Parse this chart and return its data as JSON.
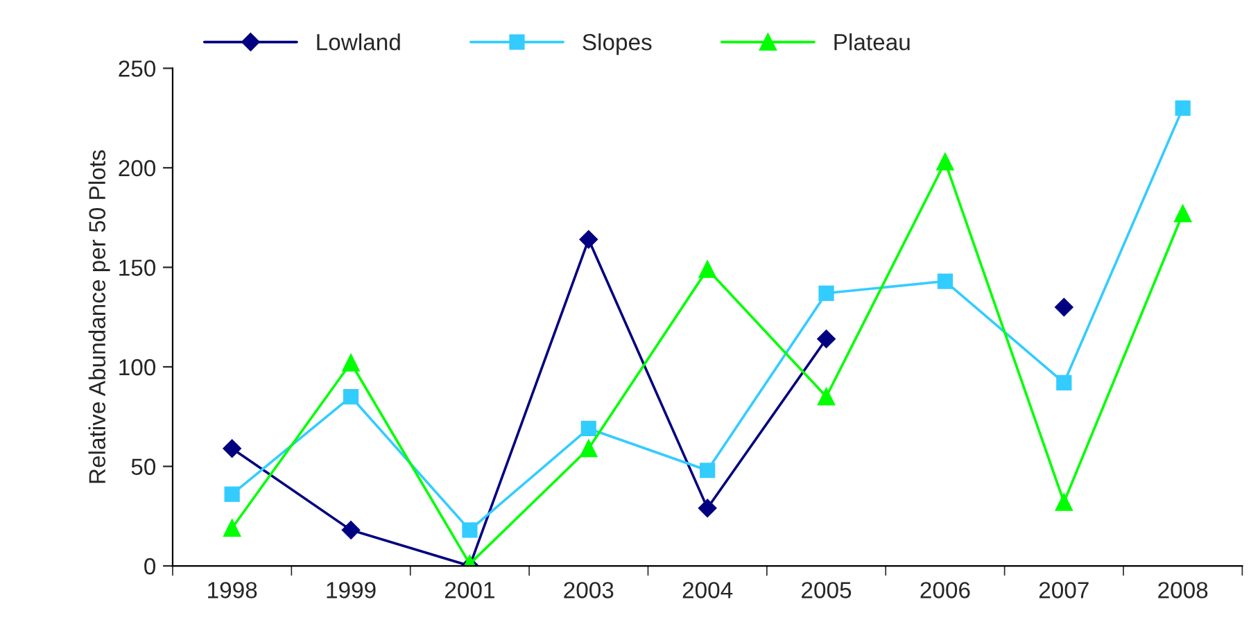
{
  "chart_data": {
    "type": "line",
    "ylabel": "Relative Abundance per 50 Plots",
    "categories": [
      "1998",
      "1999",
      "2001",
      "2003",
      "2004",
      "2005",
      "2006",
      "2007",
      "2008"
    ],
    "series": [
      {
        "name": "Lowland",
        "color": "#000080",
        "marker": "diamond",
        "values": [
          59,
          18,
          0,
          164,
          29,
          114,
          null,
          130,
          null
        ]
      },
      {
        "name": "Slopes",
        "color": "#33ccff",
        "marker": "square",
        "values": [
          36,
          85,
          18,
          69,
          48,
          137,
          143,
          92,
          230
        ]
      },
      {
        "name": "Plateau",
        "color": "#00ff00",
        "marker": "triangle",
        "values": [
          19,
          102,
          1,
          59,
          149,
          85,
          203,
          32,
          177
        ]
      }
    ],
    "ylim": [
      0,
      250
    ],
    "yticks": [
      0,
      50,
      100,
      150,
      200,
      250
    ],
    "grid": false,
    "legend": "top",
    "line_style": "solid"
  }
}
